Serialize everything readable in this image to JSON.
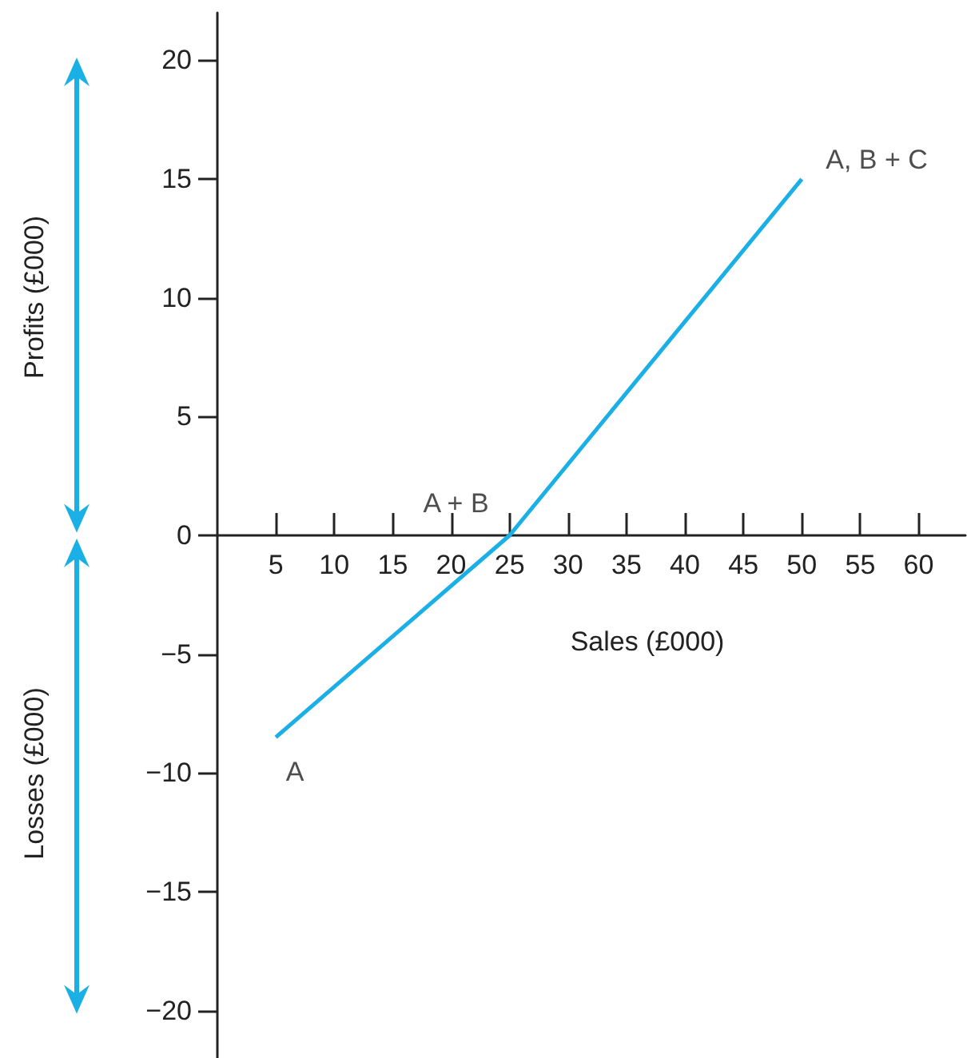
{
  "chart_data": {
    "type": "line",
    "xlabel": "Sales (£000)",
    "x": [
      5,
      25,
      50
    ],
    "series": [
      {
        "color": "#1ab0e6",
        "values": [
          -8.5,
          0,
          15
        ]
      }
    ],
    "xlim": [
      0,
      64
    ],
    "xticks": [
      5,
      10,
      15,
      20,
      25,
      30,
      35,
      40,
      45,
      50,
      55,
      60
    ],
    "ylim": [
      -22,
      22
    ],
    "yticks": [
      {
        "value": -20,
        "label": "−20"
      },
      {
        "value": -15,
        "label": "−15"
      },
      {
        "value": -10,
        "label": "−10"
      },
      {
        "value": -5,
        "label": "−5"
      },
      0,
      5,
      10,
      15,
      20
    ],
    "grid": false,
    "marker": "none",
    "line_style": "solid",
    "annotations": [
      {
        "text": "A",
        "x": 5,
        "y": -8.5
      },
      {
        "text": "A + B",
        "x": 25,
        "y": 0
      },
      {
        "text": "A, B + C",
        "x": 50,
        "y": 15
      },
      "Profits (£000)",
      "Losses (£000)"
    ]
  }
}
